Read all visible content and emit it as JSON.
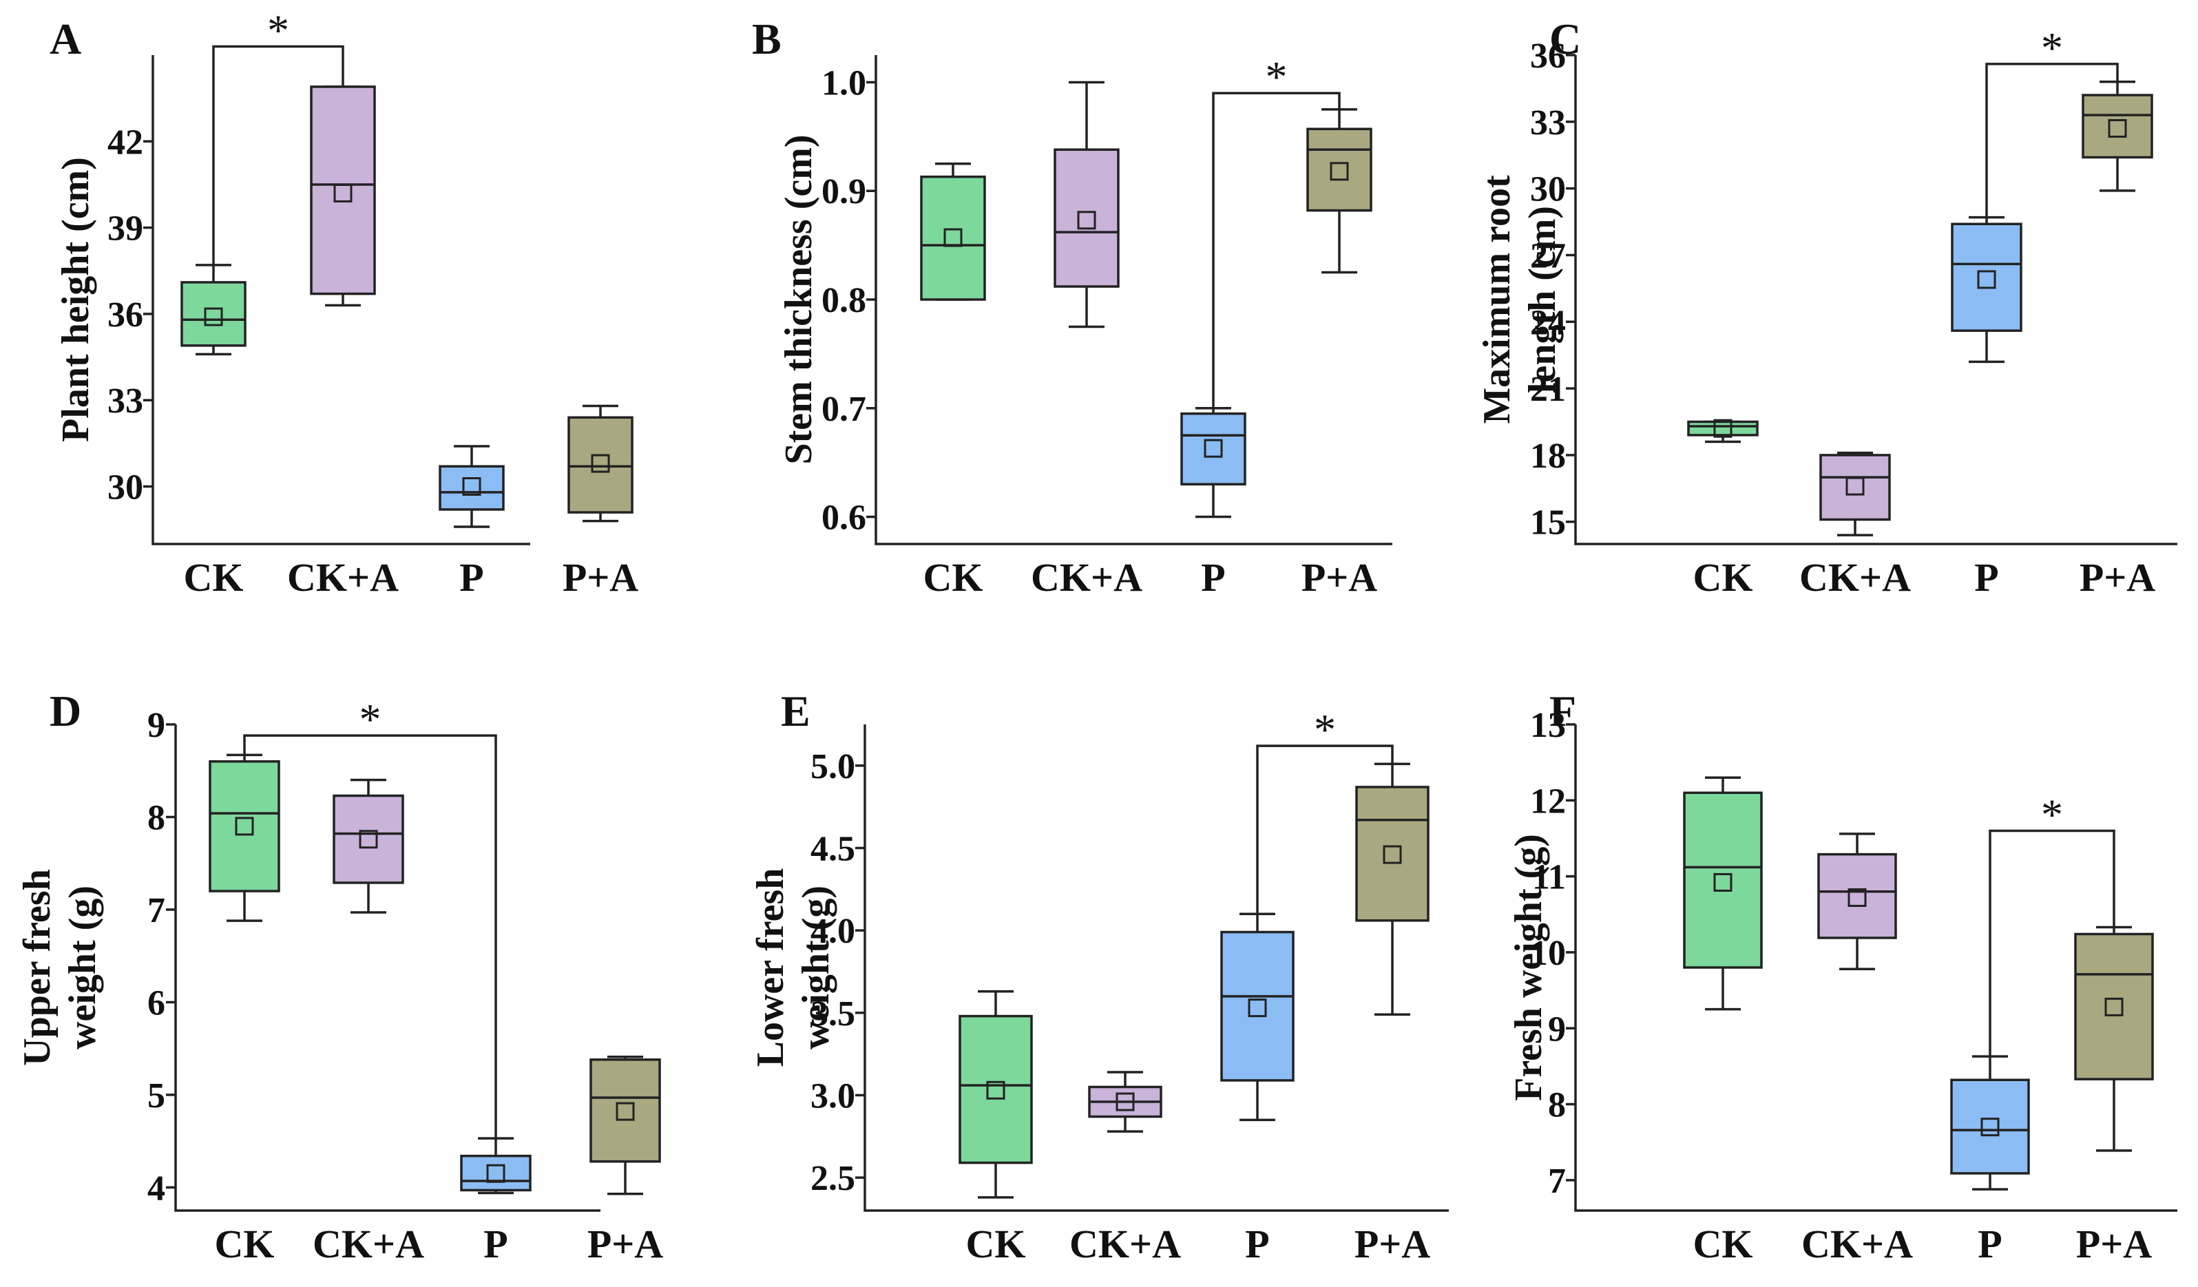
{
  "colors": {
    "CK": "#7dd89c",
    "CK+A": "#c9b3d9",
    "P": "#8cbcf4",
    "P+A": "#a9a881"
  },
  "chart_data": [
    {
      "type": "box",
      "panel": "A",
      "ylabel": "Plant  height (cm)",
      "ylim": [
        28.0,
        45.0
      ],
      "yticks": [
        30,
        33,
        36,
        39,
        42
      ],
      "tick_labels": [
        "30",
        "33",
        "36",
        "39",
        "42"
      ],
      "categories": [
        "CK",
        "CK+A",
        "P",
        "P+A"
      ],
      "boxes": [
        {
          "min": 34.6,
          "q1": 34.9,
          "median": 35.8,
          "q3": 37.1,
          "max": 37.7,
          "mean": 35.9
        },
        {
          "min": 36.3,
          "q1": 36.7,
          "median": 40.5,
          "q3": 43.9,
          "max": 43.9,
          "mean": 40.2
        },
        {
          "min": 28.6,
          "q1": 29.2,
          "median": 29.8,
          "q3": 30.7,
          "max": 31.4,
          "mean": 30.0
        },
        {
          "min": 28.8,
          "q1": 29.1,
          "median": 30.7,
          "q3": 32.4,
          "max": 32.8,
          "mean": 30.8
        }
      ],
      "significance": [
        {
          "from": 0,
          "to": 1,
          "label": "*",
          "y": 45.3
        }
      ]
    },
    {
      "type": "box",
      "panel": "B",
      "ylabel": "Stem thickness (cm)",
      "ylim": [
        0.575,
        1.025
      ],
      "yticks": [
        0.6,
        0.7,
        0.8,
        0.9,
        1.0
      ],
      "tick_labels": [
        "0.6",
        "0.7",
        "0.8",
        "0.9",
        "1.0"
      ],
      "categories": [
        "CK",
        "CK+A",
        "P",
        "P+A"
      ],
      "boxes": [
        {
          "min": 0.8,
          "q1": 0.8,
          "median": 0.85,
          "q3": 0.913,
          "max": 0.925,
          "mean": 0.857
        },
        {
          "min": 0.775,
          "q1": 0.812,
          "median": 0.862,
          "q3": 0.938,
          "max": 1.0,
          "mean": 0.873
        },
        {
          "min": 0.6,
          "q1": 0.63,
          "median": 0.675,
          "q3": 0.695,
          "max": 0.7,
          "mean": 0.663
        },
        {
          "min": 0.825,
          "q1": 0.882,
          "median": 0.938,
          "q3": 0.957,
          "max": 0.975,
          "mean": 0.918
        }
      ],
      "significance": [
        {
          "from": 2,
          "to": 3,
          "label": "*",
          "y": 0.99
        }
      ]
    },
    {
      "type": "box",
      "panel": "C",
      "ylabel": "Maximum root\nlength (cm)",
      "ylim": [
        14.0,
        36.0
      ],
      "yticks": [
        15,
        18,
        21,
        24,
        27,
        30,
        33,
        36
      ],
      "tick_labels": [
        "15",
        "18",
        "21",
        "24",
        "27",
        "30",
        "33",
        "36"
      ],
      "categories": [
        "CK",
        "CK+A",
        "P",
        "P+A"
      ],
      "boxes": [
        {
          "min": 18.6,
          "q1": 18.9,
          "median": 19.3,
          "q3": 19.5,
          "max": 19.5,
          "mean": 19.2
        },
        {
          "min": 14.4,
          "q1": 15.1,
          "median": 17.0,
          "q3": 18.0,
          "max": 18.1,
          "mean": 16.6
        },
        {
          "min": 22.2,
          "q1": 23.6,
          "median": 26.6,
          "q3": 28.4,
          "max": 28.7,
          "mean": 25.9
        },
        {
          "min": 29.9,
          "q1": 31.4,
          "median": 33.3,
          "q3": 34.2,
          "max": 34.8,
          "mean": 32.7
        }
      ],
      "significance": [
        {
          "from": 2,
          "to": 3,
          "label": "*",
          "y": 35.6
        }
      ]
    },
    {
      "type": "box",
      "panel": "D",
      "ylabel": "Upper fresh\nweight (g)",
      "ylim": [
        3.75,
        9.0
      ],
      "yticks": [
        4,
        5,
        6,
        7,
        8,
        9
      ],
      "tick_labels": [
        "4",
        "5",
        "6",
        "7",
        "8",
        "9"
      ],
      "categories": [
        "CK",
        "CK+A",
        "P",
        "P+A"
      ],
      "boxes": [
        {
          "min": 6.88,
          "q1": 7.2,
          "median": 8.04,
          "q3": 8.6,
          "max": 8.67,
          "mean": 7.9
        },
        {
          "min": 6.97,
          "q1": 7.29,
          "median": 7.82,
          "q3": 8.23,
          "max": 8.4,
          "mean": 7.76
        },
        {
          "min": 3.94,
          "q1": 3.97,
          "median": 4.07,
          "q3": 4.34,
          "max": 4.53,
          "mean": 4.15
        },
        {
          "min": 3.93,
          "q1": 4.28,
          "median": 4.97,
          "q3": 5.38,
          "max": 5.41,
          "mean": 4.82
        }
      ],
      "significance": [
        {
          "from": 0,
          "to": 2,
          "label": "*",
          "y": 8.88
        }
      ]
    },
    {
      "type": "box",
      "panel": "E",
      "ylabel": "Lower fresh\nweight (g)",
      "ylim": [
        2.3,
        5.25
      ],
      "yticks": [
        2.5,
        3.0,
        3.5,
        4.0,
        4.5,
        5.0
      ],
      "tick_labels": [
        "2.5",
        "3.0",
        "3.5",
        "4.0",
        "4.5",
        "5.0"
      ],
      "categories": [
        "CK",
        "CK+A",
        "P",
        "P+A"
      ],
      "boxes": [
        {
          "min": 2.38,
          "q1": 2.59,
          "median": 3.06,
          "q3": 3.48,
          "max": 3.63,
          "mean": 3.03
        },
        {
          "min": 2.78,
          "q1": 2.87,
          "median": 2.96,
          "q3": 3.05,
          "max": 3.14,
          "mean": 2.96
        },
        {
          "min": 2.85,
          "q1": 3.09,
          "median": 3.6,
          "q3": 3.99,
          "max": 4.1,
          "mean": 3.53
        },
        {
          "min": 3.49,
          "q1": 4.06,
          "median": 4.67,
          "q3": 4.87,
          "max": 5.01,
          "mean": 4.46
        }
      ],
      "significance": [
        {
          "from": 2,
          "to": 3,
          "label": "*",
          "y": 5.12
        }
      ]
    },
    {
      "type": "box",
      "panel": "F",
      "ylabel": "Fresh weight (g)",
      "ylim": [
        6.6,
        13.0
      ],
      "yticks": [
        7,
        8,
        9,
        10,
        11,
        12,
        13
      ],
      "tick_labels": [
        "7",
        "8",
        "9",
        "10",
        "11",
        "12",
        "13"
      ],
      "categories": [
        "CK",
        "CK+A",
        "P",
        "P+A"
      ],
      "boxes": [
        {
          "min": 9.25,
          "q1": 9.8,
          "median": 11.12,
          "q3": 12.1,
          "max": 12.3,
          "mean": 10.92
        },
        {
          "min": 9.78,
          "q1": 10.19,
          "median": 10.8,
          "q3": 11.29,
          "max": 11.56,
          "mean": 10.72
        },
        {
          "min": 6.88,
          "q1": 7.09,
          "median": 7.66,
          "q3": 8.32,
          "max": 8.63,
          "mean": 7.7
        },
        {
          "min": 7.39,
          "q1": 8.33,
          "median": 9.71,
          "q3": 10.24,
          "max": 10.33,
          "mean": 9.28
        }
      ],
      "significance": [
        {
          "from": 2,
          "to": 3,
          "label": "*",
          "y": 11.6
        }
      ]
    }
  ]
}
